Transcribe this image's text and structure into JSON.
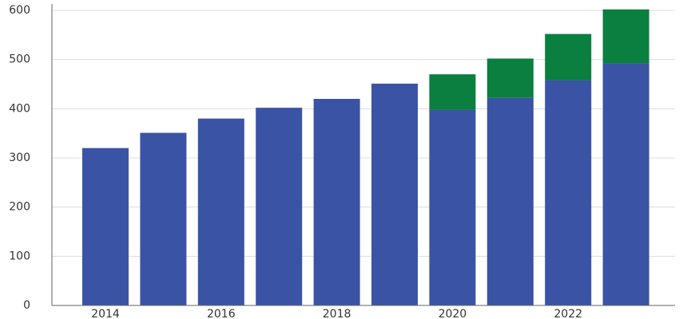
{
  "chart_data": {
    "type": "stacked-bar",
    "categories": [
      "2014",
      null,
      "2016",
      null,
      "2018",
      null,
      "2020",
      null,
      "2022",
      null
    ],
    "series": [
      {
        "color": "#3a53a4",
        "values": [
          320,
          351,
          380,
          402,
          420,
          451,
          398,
          422,
          458,
          492
        ]
      },
      {
        "color": "#0a7f3f",
        "values": [
          null,
          null,
          null,
          null,
          null,
          null,
          72,
          80,
          94,
          110
        ]
      }
    ],
    "ylim": [
      0,
      600
    ],
    "yticks": [
      0,
      100,
      200,
      300,
      400,
      500,
      600
    ],
    "grid": true
  }
}
